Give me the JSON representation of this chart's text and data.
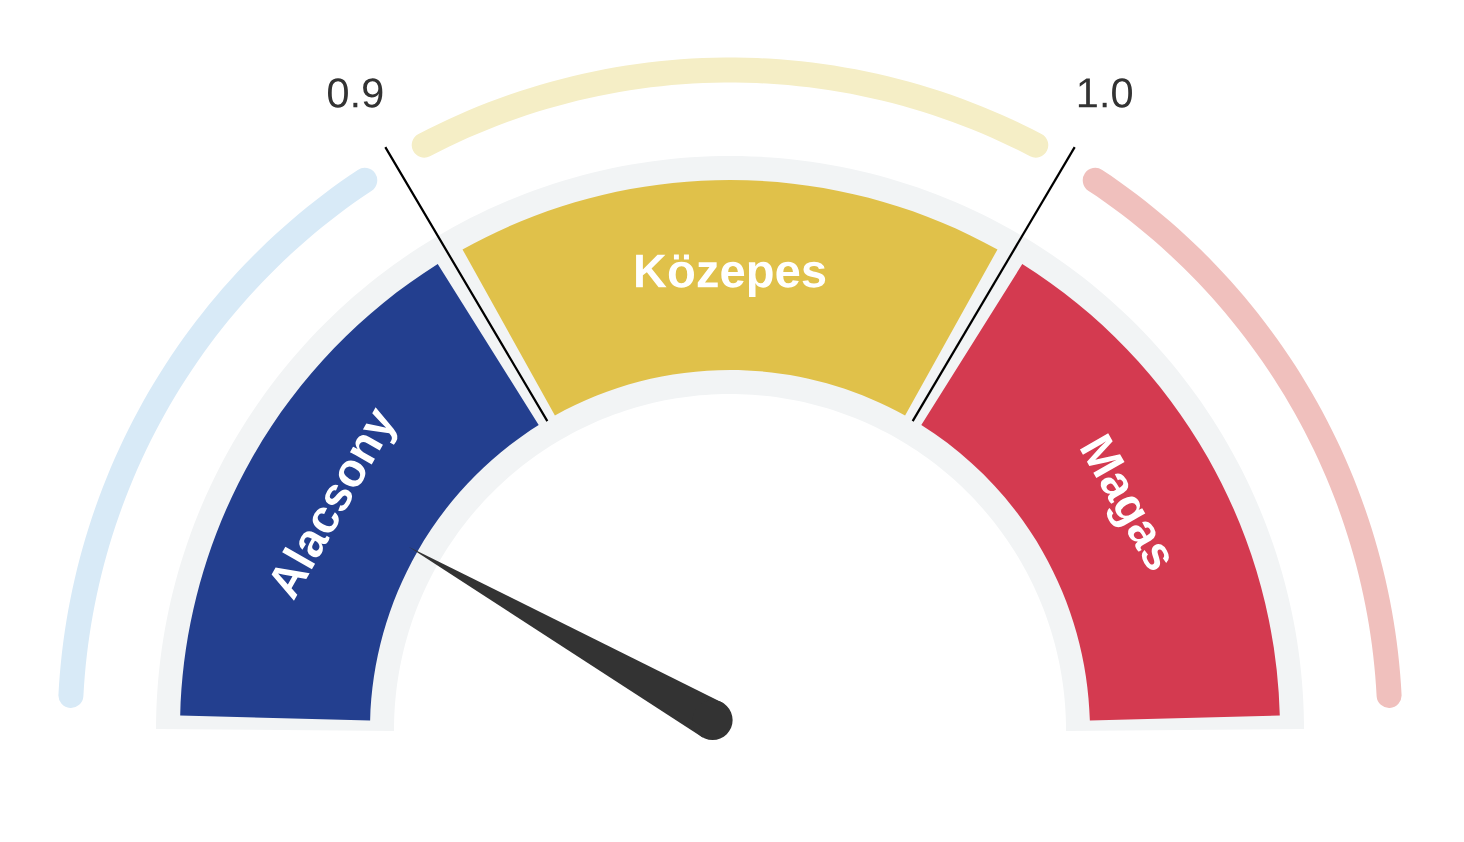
{
  "chart_data": {
    "type": "donut",
    "categories": [
      "Alacsony",
      "Közepes",
      "Magas"
    ],
    "values": [
      33,
      34,
      33
    ],
    "colors": [
      "#233f8f",
      "#e0c14a",
      "#d43a50"
    ],
    "needle": "Alacsony",
    "annotations": [
      "0.9",
      "1.0"
    ]
  }
}
